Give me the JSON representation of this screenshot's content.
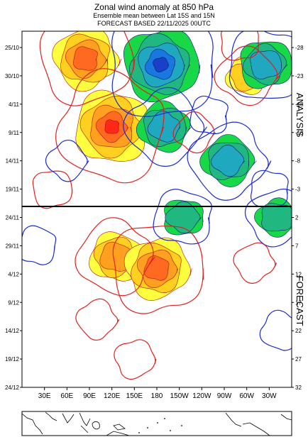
{
  "header": {
    "title": "Zonal wind anomaly at 850 hPa",
    "subtitle": "Ensemble mean between  Lat 15S and 15N",
    "forecast_line": "FORECAST  BASED 22/11/2025 00UTC"
  },
  "chart_data": {
    "type": "heatmap",
    "title": "Zonal wind anomaly at 850 hPa",
    "x": {
      "tick_labels": [
        "30E",
        "60E",
        "90E",
        "120E",
        "150E",
        "180",
        "150W",
        "120W",
        "90W",
        "60W",
        "30W"
      ],
      "range": [
        "0",
        "360"
      ]
    },
    "y_left": {
      "tick_labels": [
        "25/10",
        "30/10",
        "4/11",
        "9/11",
        "14/11",
        "19/11",
        "24/11",
        "29/11",
        "4/12",
        "9/12",
        "14/12",
        "19/12",
        "24/12"
      ]
    },
    "y_right": {
      "tick_labels": [
        "-28",
        "-23",
        "-18",
        "-13",
        "-8",
        "-3",
        "2",
        "7",
        "12",
        "17",
        "22",
        "27",
        "32"
      ]
    },
    "sections": {
      "upper": "ANALYSIS",
      "lower": "FORECAST"
    },
    "analysis_forecast_boundary": "22/11",
    "colors": {
      "positive_contour": "#e0201e",
      "negative_contour": "#1b2bd0",
      "positive_fill": [
        "#ffff40",
        "#ffd020",
        "#ffa020",
        "#ff6a20",
        "#ff2818"
      ],
      "negative_fill": [
        "#18d848",
        "#20b880",
        "#20a8c0",
        "#1878e0",
        "#1840c8"
      ]
    },
    "anomaly_regions": [
      {
        "sign": "positive",
        "center_lon": 120,
        "center_date": "8/11",
        "peak_level": 4
      },
      {
        "sign": "positive",
        "center_lon": 85,
        "center_date": "27/10",
        "peak_level": 3
      },
      {
        "sign": "positive",
        "center_lon": 125,
        "center_date": "1/12",
        "peak_level": 2
      },
      {
        "sign": "positive",
        "center_lon": 180,
        "center_date": "3/12",
        "peak_level": 3
      },
      {
        "sign": "positive",
        "center_lon": -60,
        "center_date": "30/10",
        "peak_level": 1
      },
      {
        "sign": "negative",
        "center_lon": 185,
        "center_date": "28/10",
        "peak_level": 4
      },
      {
        "sign": "negative",
        "center_lon": 190,
        "center_date": "8/11",
        "peak_level": 2
      },
      {
        "sign": "negative",
        "center_lon": -35,
        "center_date": "28/10",
        "peak_level": 2
      },
      {
        "sign": "negative",
        "center_lon": -85,
        "center_date": "14/11",
        "peak_level": 2
      },
      {
        "sign": "negative",
        "center_lon": -145,
        "center_date": "24/11",
        "peak_level": 1
      },
      {
        "sign": "negative",
        "center_lon": -20,
        "center_date": "24/11",
        "peak_level": 1
      }
    ],
    "legend": "none",
    "grid": false
  },
  "labels": {
    "analysis": "ANALYSIS",
    "forecast": "FORECAST"
  }
}
